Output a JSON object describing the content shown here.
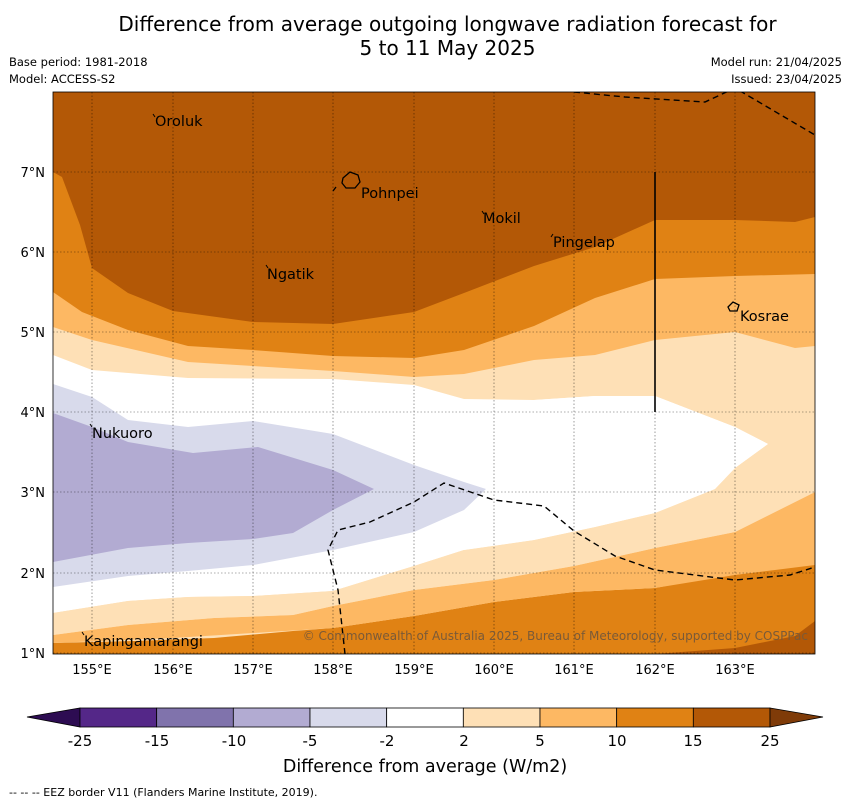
{
  "header": {
    "title_line1": "Difference from average outgoing longwave radiation forecast for",
    "title_line2": "5 to 11 May 2025",
    "base_period": "Base period: 1981-2018",
    "model": "Model: ACCESS-S2",
    "model_run": "Model run: 21/04/2025",
    "issued": "Issued: 23/04/2025"
  },
  "map": {
    "lon_ticks": [
      "155°E",
      "156°E",
      "157°E",
      "158°E",
      "159°E",
      "160°E",
      "161°E",
      "162°E",
      "163°E"
    ],
    "lat_ticks": [
      "1°N",
      "2°N",
      "3°N",
      "4°N",
      "5°N",
      "6°N",
      "7°N"
    ],
    "places": {
      "oroluk": "Oroluk",
      "pohnpei": "Pohnpei",
      "mokil": "Mokil",
      "pingelap": "Pingelap",
      "ngatik": "Ngatik",
      "kosrae": "Kosrae",
      "nukuoro": "Nukuoro",
      "kapingamarangi": "Kapingamarangi"
    },
    "copyright": "© Commonwealth of Australia 2025, Bureau of Meteorology, supported by COSPPac"
  },
  "colorbar": {
    "labels": [
      "-25",
      "-15",
      "-10",
      "-5",
      "-2",
      "2",
      "5",
      "10",
      "15",
      "25"
    ],
    "colors": [
      "#2d0c52",
      "#542788",
      "#8073ac",
      "#b2abd2",
      "#d8daeb",
      "#ffffff",
      "#fee0b6",
      "#fdb863",
      "#e08214",
      "#b35806",
      "#7f3b08"
    ],
    "title": "Difference from average (W/m2)"
  },
  "footnote": "--  --  -- EEZ border V11 (Flanders Marine Institute, 2019)."
}
